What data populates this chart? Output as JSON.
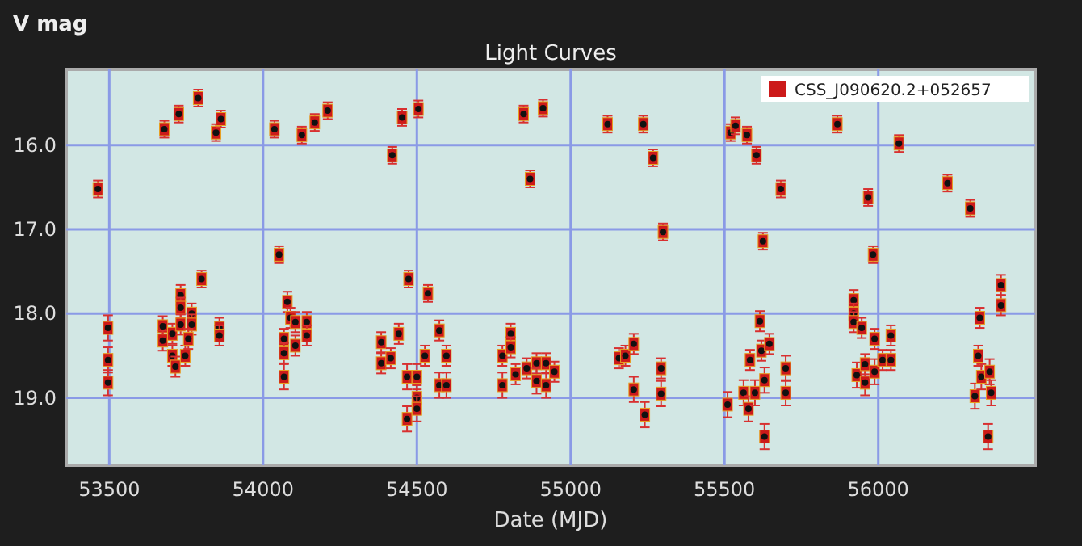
{
  "chart_data": {
    "type": "scatter",
    "title": "Light Curves",
    "xlabel": "Date (MJD)",
    "ylabel": "V mag",
    "xlim": [
      53360,
      56510
    ],
    "xticks": [
      53500,
      54000,
      54500,
      55000,
      55500,
      56000
    ],
    "ylim": [
      19.8,
      15.1
    ],
    "yticks": [
      {
        "value": 16,
        "label": "16.0"
      },
      {
        "value": 17,
        "label": "17.0"
      },
      {
        "value": 18,
        "label": "18.0"
      },
      {
        "value": 19,
        "label": "19.0"
      }
    ],
    "grid": true,
    "legend": "top right",
    "marker": "square",
    "series": [
      {
        "name": "CSS_J090620.2+052657",
        "color": "#cc1a1a",
        "x": [
          53463,
          53496,
          53496,
          53496,
          53679,
          53726,
          53789,
          53847,
          53863,
          53674,
          53674,
          53705,
          53705,
          53715,
          53732,
          53732,
          53732,
          53747,
          53768,
          53768,
          53757,
          53800,
          53858,
          53858,
          54037,
          54126,
          54168,
          54210,
          54052,
          54068,
          54068,
          54068,
          54079,
          54089,
          54105,
          54105,
          54142,
          54142,
          54420,
          54452,
          54505,
          54384,
          54384,
          54415,
          54441,
          54468,
          54468,
          54473,
          54500,
          54500,
          54500,
          54536,
          54526,
          54573,
          54573,
          54596,
          54596,
          54847,
          54910,
          54868,
          54778,
          54778,
          54805,
          54805,
          54821,
          54857,
          54889,
          54889,
          54920,
          54920,
          54947,
          55120,
          55236,
          55268,
          55300,
          55157,
          55178,
          55205,
          55205,
          55241,
          55294,
          55294,
          55510,
          55520,
          55536,
          55573,
          55604,
          55683,
          55625,
          55562,
          55578,
          55583,
          55599,
          55615,
          55620,
          55630,
          55630,
          55646,
          55699,
          55699,
          55867,
          56067,
          55967,
          55983,
          56225,
          56299,
          55920,
          55920,
          55920,
          55946,
          55930,
          55957,
          55957,
          55988,
          55988,
          56014,
          56041,
          56041,
          56330,
          56325,
          56314,
          56335,
          56362,
          56357,
          56367,
          56399,
          56399
        ],
        "values": [
          16.52,
          18.17,
          18.55,
          18.82,
          15.81,
          15.63,
          15.44,
          15.85,
          15.69,
          18.15,
          18.32,
          18.24,
          18.5,
          18.63,
          17.78,
          17.93,
          18.13,
          18.5,
          18.0,
          18.13,
          18.3,
          17.59,
          18.17,
          18.26,
          15.81,
          15.88,
          15.73,
          15.59,
          17.3,
          18.3,
          18.47,
          18.75,
          17.86,
          18.05,
          18.1,
          18.38,
          18.1,
          18.26,
          16.12,
          15.67,
          15.57,
          18.34,
          18.59,
          18.53,
          18.24,
          18.75,
          19.25,
          17.59,
          18.75,
          19.0,
          19.13,
          17.76,
          18.5,
          18.2,
          18.85,
          18.5,
          18.85,
          15.63,
          15.56,
          16.4,
          18.5,
          18.85,
          18.24,
          18.4,
          18.72,
          18.65,
          18.59,
          18.8,
          18.59,
          18.85,
          18.69,
          15.75,
          15.75,
          16.15,
          17.03,
          18.53,
          18.5,
          18.36,
          18.9,
          19.2,
          18.65,
          18.95,
          19.08,
          15.85,
          15.77,
          15.88,
          16.12,
          16.52,
          17.14,
          18.94,
          19.13,
          18.55,
          18.94,
          18.09,
          18.44,
          18.79,
          19.46,
          18.36,
          18.65,
          18.94,
          15.75,
          15.98,
          16.62,
          17.3,
          16.45,
          16.75,
          17.84,
          18.0,
          18.1,
          18.17,
          18.73,
          18.82,
          18.6,
          18.3,
          18.69,
          18.55,
          18.26,
          18.55,
          18.05,
          18.5,
          18.98,
          18.75,
          18.69,
          19.46,
          18.94,
          17.66,
          17.9
        ],
        "errors": [
          0.1,
          0.15,
          0.15,
          0.15,
          0.1,
          0.1,
          0.1,
          0.1,
          0.1,
          0.12,
          0.12,
          0.12,
          0.12,
          0.12,
          0.12,
          0.12,
          0.12,
          0.12,
          0.12,
          0.12,
          0.12,
          0.1,
          0.12,
          0.12,
          0.1,
          0.1,
          0.1,
          0.1,
          0.1,
          0.12,
          0.12,
          0.15,
          0.12,
          0.12,
          0.12,
          0.12,
          0.12,
          0.12,
          0.1,
          0.1,
          0.1,
          0.12,
          0.12,
          0.12,
          0.12,
          0.15,
          0.15,
          0.1,
          0.15,
          0.15,
          0.15,
          0.1,
          0.12,
          0.12,
          0.15,
          0.12,
          0.15,
          0.1,
          0.1,
          0.1,
          0.12,
          0.15,
          0.12,
          0.12,
          0.12,
          0.12,
          0.12,
          0.15,
          0.12,
          0.15,
          0.12,
          0.1,
          0.1,
          0.1,
          0.1,
          0.12,
          0.12,
          0.12,
          0.15,
          0.15,
          0.12,
          0.15,
          0.15,
          0.1,
          0.1,
          0.1,
          0.1,
          0.1,
          0.1,
          0.15,
          0.15,
          0.12,
          0.15,
          0.12,
          0.12,
          0.15,
          0.15,
          0.12,
          0.15,
          0.15,
          0.1,
          0.1,
          0.1,
          0.1,
          0.1,
          0.1,
          0.12,
          0.12,
          0.12,
          0.12,
          0.15,
          0.15,
          0.12,
          0.12,
          0.15,
          0.12,
          0.12,
          0.12,
          0.12,
          0.12,
          0.15,
          0.15,
          0.15,
          0.15,
          0.15,
          0.12,
          0.12
        ]
      }
    ]
  }
}
